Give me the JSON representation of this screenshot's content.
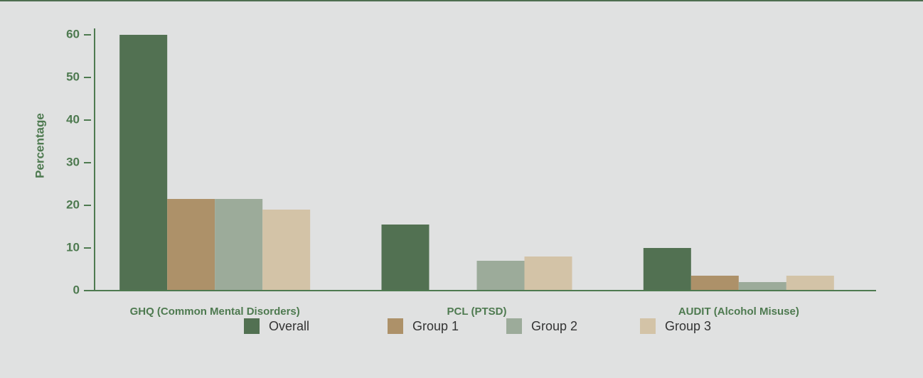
{
  "chart_data": {
    "type": "bar",
    "y_label": "Percentage",
    "categories": [
      "GHQ (Common Mental Disorders)",
      "PCL (PTSD)",
      "AUDIT (Alcohol Misuse)"
    ],
    "series": [
      {
        "name": "Overall",
        "color": "#527152",
        "values": [
          60,
          15.5,
          10
        ]
      },
      {
        "name": "Group 1",
        "color": "#ad9169",
        "values": [
          21.5,
          0,
          3.5
        ]
      },
      {
        "name": "Group 2",
        "color": "#9cab9a",
        "values": [
          21.5,
          7,
          2
        ]
      },
      {
        "name": "Group 3",
        "color": "#d3c3a7",
        "values": [
          19,
          8,
          3.5
        ]
      }
    ],
    "ylim": [
      0,
      60
    ],
    "yticks": [
      0,
      10,
      20,
      30,
      40,
      50,
      60
    ]
  }
}
